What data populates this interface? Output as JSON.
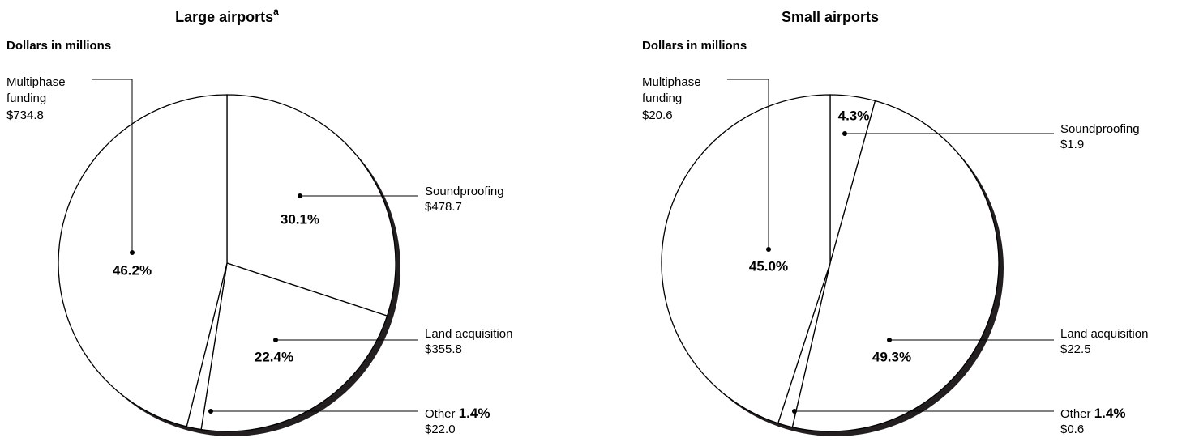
{
  "chart_data": [
    {
      "type": "pie",
      "title": "Large airports",
      "title_note": "a",
      "subtitle": "Dollars in millions",
      "categories": [
        "Soundproofing",
        "Land acquisition",
        "Other",
        "Multiphase funding"
      ],
      "values": [
        30.1,
        22.4,
        1.4,
        46.2
      ],
      "value_labels": [
        "30.1%",
        "22.4%",
        "1.4%",
        "46.2%"
      ],
      "amount_labels": [
        "$478.7",
        "$355.8",
        "$22.0",
        "$734.8"
      ]
    },
    {
      "type": "pie",
      "title": "Small airports",
      "subtitle": "Dollars in millions",
      "categories": [
        "Soundproofing",
        "Land acquisition",
        "Other",
        "Multiphase funding"
      ],
      "values": [
        4.3,
        49.3,
        1.4,
        45.0
      ],
      "value_labels": [
        "4.3%",
        "49.3%",
        "1.4%",
        "45.0%"
      ],
      "amount_labels": [
        "$1.9",
        "$22.5",
        "$0.6",
        "$20.6"
      ]
    }
  ]
}
